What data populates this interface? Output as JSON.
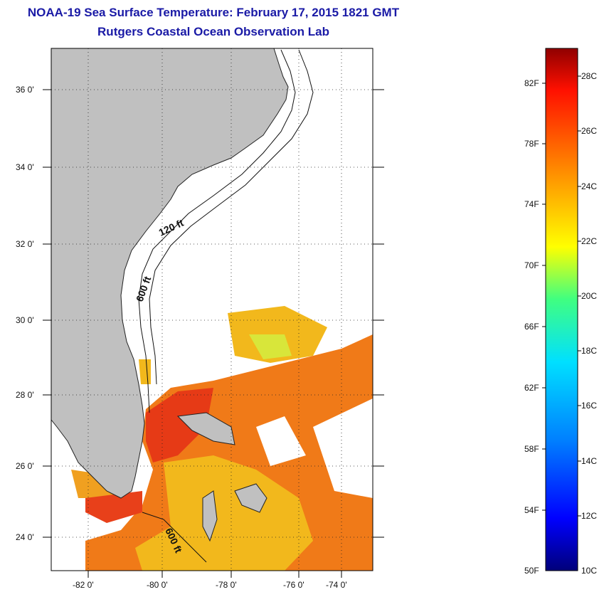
{
  "title": "NOAA-19 Sea Surface Temperature:  February 17, 2015 1821 GMT",
  "subtitle": "Rutgers Coastal Ocean Observation Lab",
  "map": {
    "lat_labels": [
      "36 0'",
      "34 0'",
      "32 0'",
      "30 0'",
      "28 0'",
      "26 0'",
      "24 0'"
    ],
    "lon_labels": [
      "-82 0'",
      "-80 0'",
      "-78 0'",
      "-76 0'",
      "-74 0'"
    ],
    "isobath_labels": [
      "120 ft",
      "600 ft",
      "600 ft"
    ],
    "land_color": "#c0c0c0",
    "ocean_colors": {
      "warm": "#e8401a",
      "mid": "#f07a18",
      "cool": "#f2b81c",
      "cold": "#d8e63a"
    }
  },
  "colorbar": {
    "fahrenheit_labels": [
      "82F",
      "78F",
      "74F",
      "70F",
      "66F",
      "62F",
      "58F",
      "54F",
      "50F"
    ],
    "celsius_labels": [
      "28C",
      "26C",
      "24C",
      "22C",
      "20C",
      "18C",
      "16C",
      "14C",
      "12C",
      "10C"
    ],
    "colors": [
      "#00007a",
      "#0000ff",
      "#0080ff",
      "#00e0ff",
      "#40ff80",
      "#ffff00",
      "#ffb000",
      "#ff6000",
      "#ff1000",
      "#900000"
    ]
  }
}
